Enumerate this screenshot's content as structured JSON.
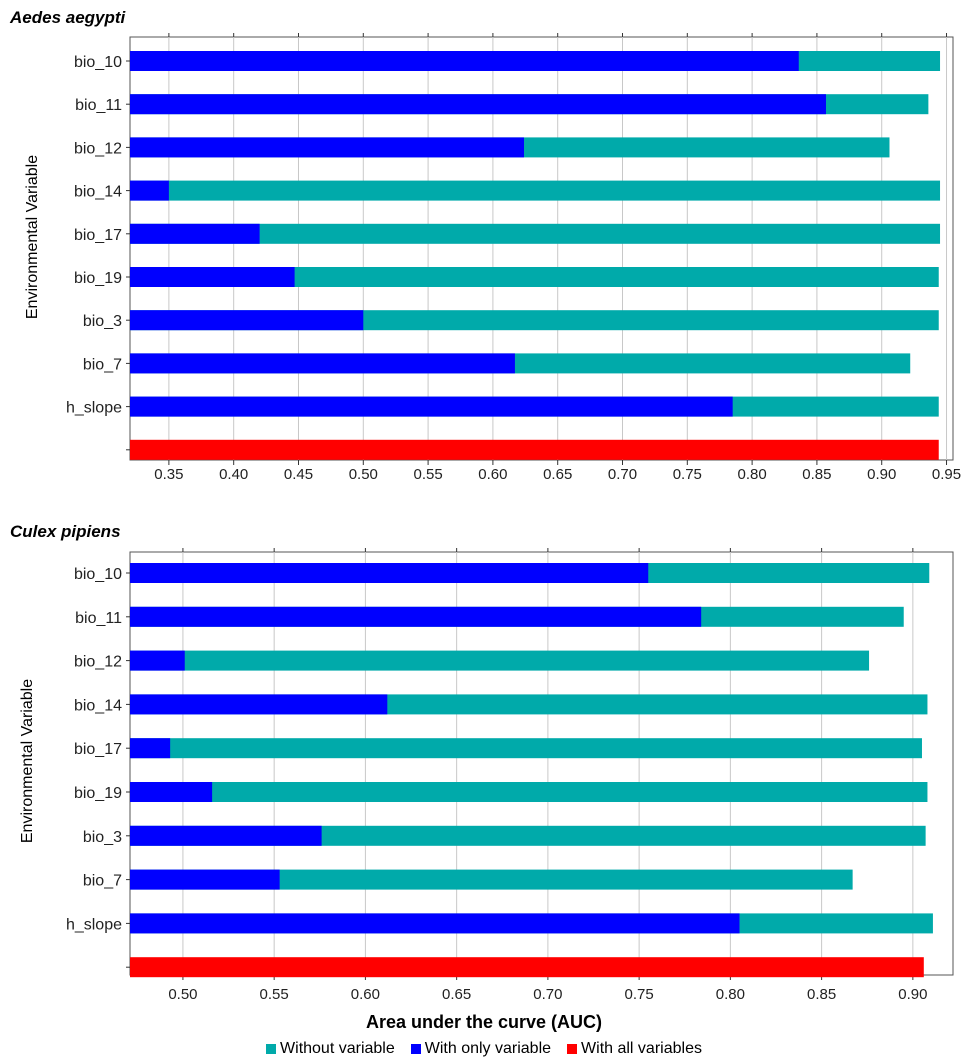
{
  "chart_data": [
    {
      "type": "bar",
      "orientation": "horizontal",
      "title": "Aedes aegypti",
      "xlabel": "",
      "ylabel": "Environmental Variable",
      "xlim": [
        0.32,
        0.955
      ],
      "xticks": [
        "0.35",
        "0.40",
        "0.45",
        "0.50",
        "0.55",
        "0.60",
        "0.65",
        "0.70",
        "0.75",
        "0.80",
        "0.85",
        "0.90",
        "0.95"
      ],
      "grid": true,
      "categories": [
        "bio_10",
        "bio_11",
        "bio_12",
        "bio_14",
        "bio_17",
        "bio_19",
        "bio_3",
        "bio_7",
        "h_slope",
        ""
      ],
      "series": [
        {
          "name": "Without variable",
          "color": "#00aaaa",
          "values": [
            0.945,
            0.936,
            0.906,
            0.945,
            0.945,
            0.944,
            0.944,
            0.922,
            0.944,
            null
          ]
        },
        {
          "name": "With only variable",
          "color": "#0000ff",
          "values": [
            0.836,
            0.857,
            0.624,
            0.35,
            0.42,
            0.447,
            0.5,
            0.617,
            0.785,
            null
          ]
        },
        {
          "name": "With all variables",
          "color": "#ff0000",
          "values": [
            null,
            null,
            null,
            null,
            null,
            null,
            null,
            null,
            null,
            0.944
          ]
        }
      ]
    },
    {
      "type": "bar",
      "orientation": "horizontal",
      "title": "Culex pipiens",
      "xlabel": "Area under the curve (AUC)",
      "ylabel": "Environmental Variable",
      "xlim": [
        0.471,
        0.922
      ],
      "xticks": [
        "0.50",
        "0.55",
        "0.60",
        "0.65",
        "0.70",
        "0.75",
        "0.80",
        "0.85",
        "0.90"
      ],
      "grid": true,
      "categories": [
        "bio_10",
        "bio_11",
        "bio_12",
        "bio_14",
        "bio_17",
        "bio_19",
        "bio_3",
        "bio_7",
        "h_slope",
        ""
      ],
      "series": [
        {
          "name": "Without variable",
          "color": "#00aaaa",
          "values": [
            0.909,
            0.895,
            0.876,
            0.908,
            0.905,
            0.908,
            0.907,
            0.867,
            0.911,
            null
          ]
        },
        {
          "name": "With only variable",
          "color": "#0000ff",
          "values": [
            0.755,
            0.784,
            0.501,
            0.612,
            0.493,
            0.516,
            0.576,
            0.553,
            0.805,
            null
          ]
        },
        {
          "name": "With all variables",
          "color": "#ff0000",
          "values": [
            null,
            null,
            null,
            null,
            null,
            null,
            null,
            null,
            null,
            0.906
          ]
        }
      ]
    }
  ],
  "legend": [
    {
      "label": "Without variable",
      "color": "#00aaaa"
    },
    {
      "label": "With only variable",
      "color": "#0000ff"
    },
    {
      "label": "With all variables",
      "color": "#ff0000"
    }
  ]
}
